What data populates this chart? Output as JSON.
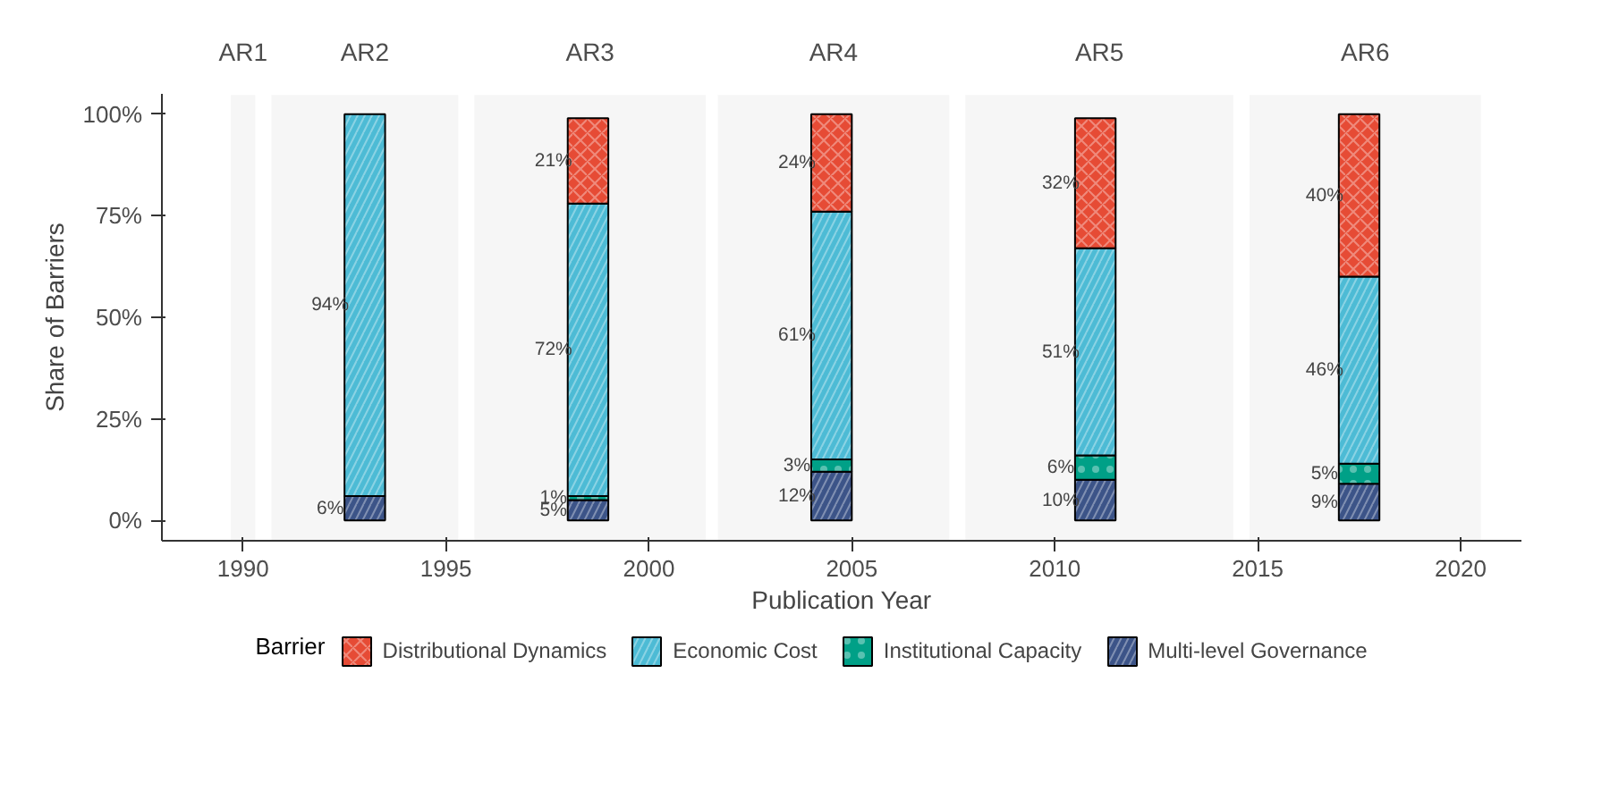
{
  "chart_data": {
    "type": "bar",
    "stacked": true,
    "xlabel": "Publication Year",
    "ylabel": "Share of Barriers",
    "legend_title": "Barrier",
    "legend": "bottom",
    "grid": false,
    "x": [
      1993,
      1998.5,
      2004.5,
      2011,
      2017.5
    ],
    "xlim": [
      1988,
      2021.5
    ],
    "xticks": [
      1990,
      1995,
      2000,
      2005,
      2010,
      2015,
      2020
    ],
    "ylim": [
      -5,
      105
    ],
    "yticks": [
      {
        "value": 0,
        "label": "0%"
      },
      {
        "value": 25,
        "label": "25%"
      },
      {
        "value": 50,
        "label": "50%"
      },
      {
        "value": 75,
        "label": "75%"
      },
      {
        "value": 100,
        "label": "100%"
      }
    ],
    "series": [
      {
        "name": "Multi‑level Governance",
        "color": "#3c5488",
        "values": [
          6,
          5,
          12,
          10,
          9
        ],
        "value_labels": [
          "6%",
          "5%",
          "12%",
          "10%",
          "9%"
        ]
      },
      {
        "name": "Institutional Capacity",
        "color": "#00a087",
        "values": [
          0,
          1,
          3,
          6,
          5
        ],
        "value_labels": [
          null,
          "1%",
          "3%",
          "6%",
          "5%"
        ]
      },
      {
        "name": "Economic Cost",
        "color": "#4dbbd5",
        "values": [
          94,
          72,
          61,
          51,
          46
        ],
        "value_labels": [
          "94%",
          "72%",
          "61%",
          "51%",
          "46%"
        ]
      },
      {
        "name": "Distributional Dynamics",
        "color": "#e64b35",
        "values": [
          0,
          21,
          24,
          32,
          40
        ],
        "value_labels": [
          null,
          "21%",
          "24%",
          "32%",
          "40%"
        ]
      }
    ],
    "bands": [
      {
        "axis": "x",
        "from": 1989.7,
        "to": 1990.3,
        "label": "AR1",
        "color": "#eeeeee"
      },
      {
        "axis": "x",
        "from": 1990.7,
        "to": 1995.3,
        "label": "AR2",
        "color": "#eeeeee"
      },
      {
        "axis": "x",
        "from": 1995.7,
        "to": 2001.4,
        "label": "AR3",
        "color": "#eeeeee"
      },
      {
        "axis": "x",
        "from": 2001.7,
        "to": 2007.4,
        "label": "AR4",
        "color": "#eeeeee"
      },
      {
        "axis": "x",
        "from": 2007.8,
        "to": 2014.4,
        "label": "AR5",
        "color": "#eeeeee"
      },
      {
        "axis": "x",
        "from": 2014.8,
        "to": 2020.5,
        "label": "AR6",
        "color": "#eeeeee"
      }
    ]
  }
}
